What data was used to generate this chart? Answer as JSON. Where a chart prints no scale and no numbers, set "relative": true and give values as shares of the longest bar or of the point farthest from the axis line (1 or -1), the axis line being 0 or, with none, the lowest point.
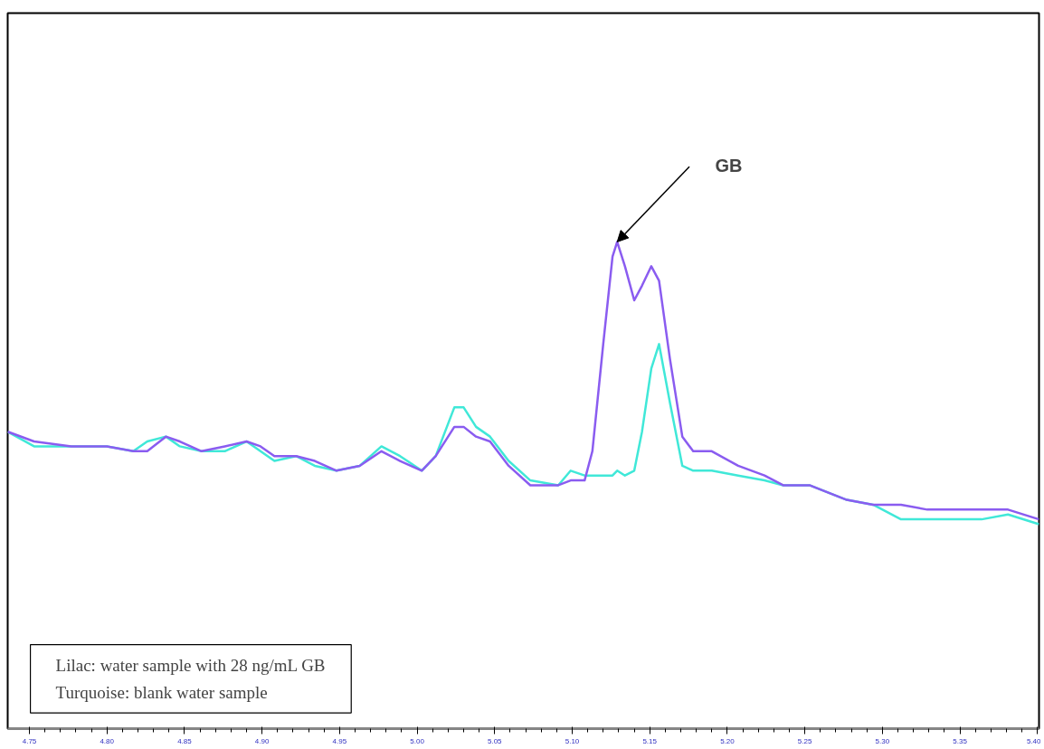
{
  "chart_data": {
    "type": "line",
    "relative": true,
    "x": [
      4.736,
      4.753,
      4.777,
      4.8,
      4.817,
      4.826,
      4.838,
      4.847,
      4.861,
      4.876,
      4.89,
      4.899,
      4.908,
      4.922,
      4.934,
      4.948,
      4.963,
      4.977,
      4.989,
      5.003,
      5.012,
      5.024,
      5.03,
      5.038,
      5.047,
      5.059,
      5.073,
      5.091,
      5.099,
      5.108,
      5.113,
      5.12,
      5.126,
      5.129,
      5.134,
      5.14,
      5.145,
      5.151,
      5.156,
      5.163,
      5.171,
      5.178,
      5.19,
      5.207,
      5.224,
      5.236,
      5.253,
      5.277,
      5.294,
      5.312,
      5.329,
      5.347,
      5.364,
      5.381,
      5.401
    ],
    "xlim": [
      4.736,
      5.401
    ],
    "xticks": [
      {
        "value": 4.75,
        "label": "4.75"
      },
      {
        "value": 4.8,
        "label": "4.80"
      },
      {
        "value": 4.85,
        "label": "4.85"
      },
      {
        "value": 4.9,
        "label": "4.90"
      },
      {
        "value": 4.95,
        "label": "4.95"
      },
      {
        "value": 5.0,
        "label": "5.00"
      },
      {
        "value": 5.05,
        "label": "5.05"
      },
      {
        "value": 5.1,
        "label": "5.10"
      },
      {
        "value": 5.15,
        "label": "5.15"
      },
      {
        "value": 5.2,
        "label": "5.20"
      },
      {
        "value": 5.25,
        "label": "5.25"
      },
      {
        "value": 5.3,
        "label": "5.30"
      },
      {
        "value": 5.35,
        "label": "5.35"
      },
      {
        "value": 5.4,
        "label": "5.40"
      }
    ],
    "series": [
      {
        "color": "#8a5cf0",
        "values": [
          0.61,
          0.59,
          0.58,
          0.58,
          0.57,
          0.57,
          0.6,
          0.59,
          0.57,
          0.58,
          0.59,
          0.58,
          0.56,
          0.56,
          0.55,
          0.53,
          0.54,
          0.57,
          0.55,
          0.53,
          0.56,
          0.62,
          0.62,
          0.6,
          0.59,
          0.54,
          0.5,
          0.5,
          0.51,
          0.51,
          0.57,
          0.79,
          0.97,
          1,
          0.95,
          0.88,
          0.91,
          0.95,
          0.92,
          0.76,
          0.6,
          0.57,
          0.57,
          0.54,
          0.52,
          0.5,
          0.5,
          0.47,
          0.46,
          0.46,
          0.45,
          0.45,
          0.45,
          0.45,
          0.43
        ]
      },
      {
        "color": "#40e8d8",
        "values": [
          0.61,
          0.58,
          0.58,
          0.58,
          0.57,
          0.59,
          0.6,
          0.58,
          0.57,
          0.57,
          0.59,
          0.57,
          0.55,
          0.56,
          0.54,
          0.53,
          0.54,
          0.58,
          0.56,
          0.53,
          0.56,
          0.66,
          0.66,
          0.62,
          0.6,
          0.55,
          0.51,
          0.5,
          0.53,
          0.52,
          0.52,
          0.52,
          0.52,
          0.53,
          0.52,
          0.53,
          0.61,
          0.74,
          0.79,
          0.67,
          0.54,
          0.53,
          0.53,
          0.52,
          0.51,
          0.5,
          0.5,
          0.47,
          0.46,
          0.43,
          0.43,
          0.43,
          0.43,
          0.44,
          0.42
        ]
      }
    ],
    "grid": false,
    "marker": "none",
    "line_style": "solid",
    "annotations": [
      "GB",
      "Lilac: water sample with 28 ng/mL GB",
      "Turquoise: blank water sample"
    ]
  }
}
